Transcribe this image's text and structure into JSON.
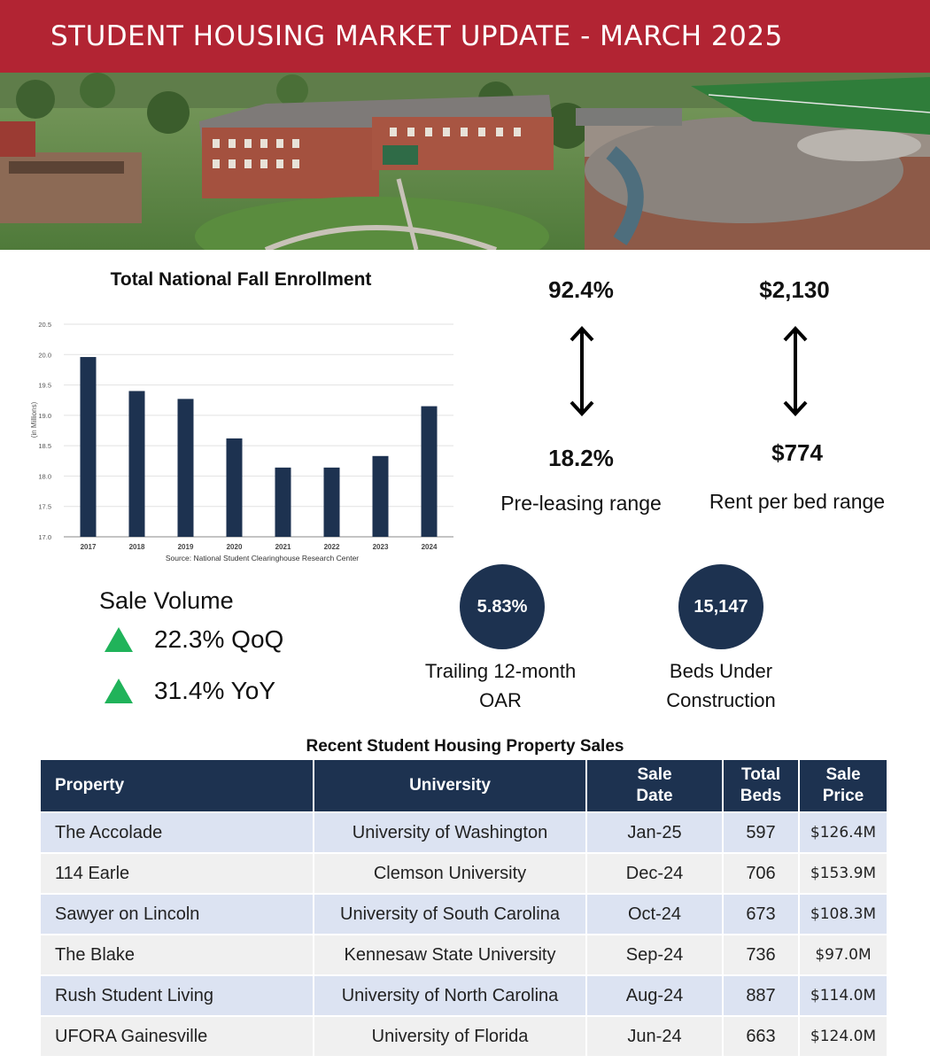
{
  "banner": {
    "title": "STUDENT HOUSING MARKET UPDATE - MARCH 2025"
  },
  "chart_data": {
    "type": "bar",
    "title": "Total National Fall Enrollment",
    "ylabel": "(in Millions)",
    "source": "Source: National Student Clearinghouse Research Center",
    "categories": [
      "2017",
      "2018",
      "2019",
      "2020",
      "2021",
      "2022",
      "2023",
      "2024"
    ],
    "values": [
      19.96,
      19.4,
      19.27,
      18.62,
      18.14,
      18.14,
      18.33,
      19.15
    ],
    "ylim": [
      17.0,
      20.5
    ],
    "yticks": [
      "17.0",
      "17.5",
      "18.0",
      "18.5",
      "19.0",
      "19.5",
      "20.0",
      "20.5"
    ],
    "grid": true,
    "bar_color": "#1d3250"
  },
  "preleasing": {
    "high": "92.4%",
    "low": "18.2%",
    "label": "Pre-leasing range"
  },
  "rent": {
    "high": "$2,130",
    "low": "$774",
    "label": "Rent per bed range"
  },
  "sale_volume": {
    "title": "Sale Volume",
    "items": [
      {
        "text": "22.3% QoQ",
        "icon": "up-triangle-icon"
      },
      {
        "text": "31.4% YoY",
        "icon": "up-triangle-icon"
      }
    ]
  },
  "oar": {
    "value": "5.83%",
    "label_line1": "Trailing 12-month",
    "label_line2": "OAR"
  },
  "beds": {
    "value": "15,147",
    "label_line1": "Beds Under",
    "label_line2": "Construction"
  },
  "table": {
    "title": "Recent Student Housing Property Sales",
    "headers": {
      "property": "Property",
      "university": "University",
      "sale_date_1": "Sale",
      "sale_date_2": "Date",
      "beds_1": "Total",
      "beds_2": "Beds",
      "price": "Sale Price"
    },
    "rows": [
      {
        "property": "The Accolade",
        "university": "University of Washington",
        "date": "Jan-25",
        "beds": "597",
        "price": "$126.4M"
      },
      {
        "property": "114 Earle",
        "university": "Clemson University",
        "date": "Dec-24",
        "beds": "706",
        "price": "$153.9M"
      },
      {
        "property": "Sawyer on Lincoln",
        "university": "University of South Carolina",
        "date": "Oct-24",
        "beds": "673",
        "price": "$108.3M"
      },
      {
        "property": "The Blake",
        "university": "Kennesaw State University",
        "date": "Sep-24",
        "beds": "736",
        "price": "$97.0M"
      },
      {
        "property": "Rush Student Living",
        "university": "University of North Carolina",
        "date": "Aug-24",
        "beds": "887",
        "price": "$114.0M"
      },
      {
        "property": "UFORA Gainesville",
        "university": "University of Florida",
        "date": "Jun-24",
        "beds": "663",
        "price": "$124.0M"
      }
    ]
  },
  "colors": {
    "banner": "#b22433",
    "navy": "#1d3250",
    "up": "#20b35a"
  }
}
